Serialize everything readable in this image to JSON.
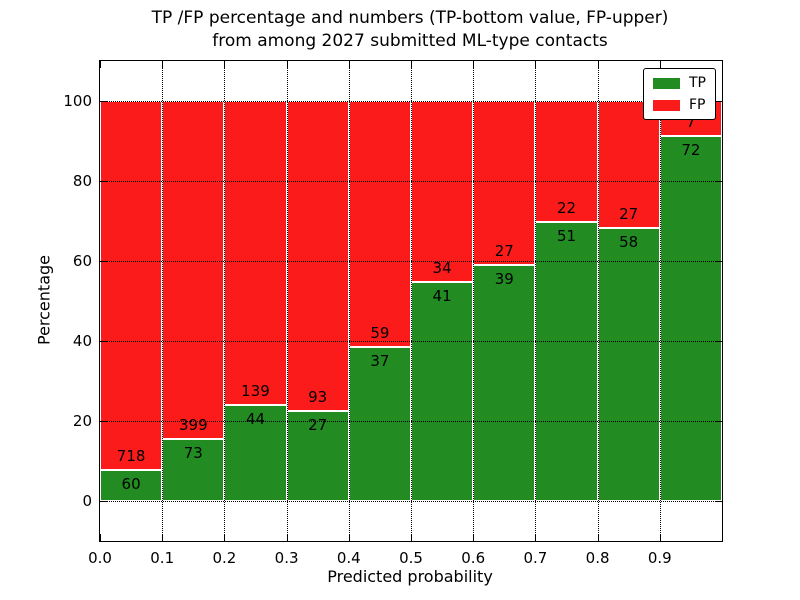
{
  "title": {
    "line1": "TP /FP percentage and numbers (TP-bottom value, FP-upper)",
    "line2": "from among 2027 submitted ML-type contacts"
  },
  "chart_data": {
    "type": "bar",
    "stacked": true,
    "normalized": "each bar scaled to 100%, raw counts shown as labels",
    "total_contacts": 2027,
    "categories": [
      "0.0-0.1",
      "0.1-0.2",
      "0.2-0.3",
      "0.3-0.4",
      "0.4-0.5",
      "0.5-0.6",
      "0.6-0.7",
      "0.7-0.8",
      "0.8-0.9",
      "0.9-1.0"
    ],
    "bin_starts": [
      0.0,
      0.1,
      0.2,
      0.3,
      0.4,
      0.5,
      0.6,
      0.7,
      0.8,
      0.9
    ],
    "bin_width": 0.1,
    "series": [
      {
        "name": "TP",
        "color": "#228b22",
        "values": [
          60,
          73,
          44,
          27,
          37,
          41,
          39,
          51,
          58,
          72
        ]
      },
      {
        "name": "FP",
        "color": "#fb1b1b",
        "values": [
          718,
          399,
          139,
          93,
          59,
          34,
          27,
          22,
          27,
          7
        ]
      }
    ],
    "xlabel": "Predicted probability",
    "ylabel": "Percentage",
    "x_tick_labels": [
      "0.0",
      "0.1",
      "0.2",
      "0.3",
      "0.4",
      "0.5",
      "0.6",
      "0.7",
      "0.8",
      "0.9"
    ],
    "y_ticks": [
      0,
      20,
      40,
      60,
      80,
      100
    ],
    "xlim": [
      0.0,
      1.0
    ],
    "ylim": [
      -10,
      110
    ],
    "grid": "dotted black, horizontal at y-ticks, vertical at x-ticks",
    "legend": {
      "position": "upper right",
      "entries": [
        "TP",
        "FP"
      ]
    }
  }
}
